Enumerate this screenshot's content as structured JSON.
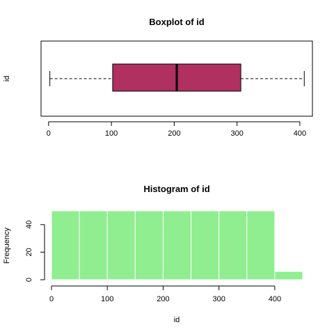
{
  "chart_data": [
    {
      "type": "boxplot",
      "title": "Boxplot of id",
      "ylabel": "id",
      "orientation": "horizontal",
      "whisker_low": 2,
      "q1": 102,
      "median": 204,
      "q3": 306,
      "whisker_high": 407,
      "xlim": [
        -12,
        420
      ],
      "ticks": [
        0,
        100,
        200,
        300,
        400
      ],
      "tick_labels": [
        "0",
        "100",
        "200",
        "300",
        "400"
      ],
      "colors": {
        "box": "#B03060",
        "whisker": "#000000"
      }
    },
    {
      "type": "histogram",
      "title": "Histogram of id",
      "xlabel": "id",
      "ylabel": "Frequency",
      "bins": [
        {
          "from": 0,
          "to": 50,
          "count": 50
        },
        {
          "from": 50,
          "to": 100,
          "count": 50
        },
        {
          "from": 100,
          "to": 150,
          "count": 50
        },
        {
          "from": 150,
          "to": 200,
          "count": 50
        },
        {
          "from": 200,
          "to": 250,
          "count": 50
        },
        {
          "from": 250,
          "to": 300,
          "count": 50
        },
        {
          "from": 300,
          "to": 350,
          "count": 50
        },
        {
          "from": 350,
          "to": 400,
          "count": 50
        },
        {
          "from": 400,
          "to": 450,
          "count": 6
        }
      ],
      "xlim": [
        0,
        450
      ],
      "ylim": [
        0,
        50
      ],
      "xticks": [
        0,
        100,
        200,
        300,
        400
      ],
      "xtick_labels": [
        "0",
        "100",
        "200",
        "300",
        "400"
      ],
      "yticks": [
        0,
        20,
        40
      ],
      "ytick_labels": [
        "0",
        "20",
        "40"
      ],
      "colors": {
        "bar": "#90EE90",
        "border": "#ffffff"
      }
    }
  ]
}
